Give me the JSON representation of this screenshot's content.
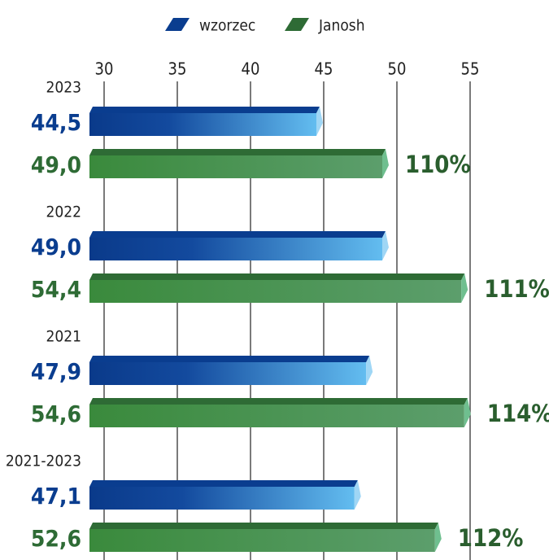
{
  "chart_data": {
    "type": "bar",
    "orientation": "horizontal",
    "categories": [
      "2023",
      "2022",
      "2021",
      "2021-2023"
    ],
    "series": [
      {
        "name": "wzorzec",
        "color": "#0a3d8f",
        "values": [
          44.5,
          49.0,
          47.9,
          47.1
        ],
        "value_labels": [
          "44,5",
          "49,0",
          "47,9",
          "47,1"
        ]
      },
      {
        "name": "Janosh",
        "color": "#2e6b35",
        "values": [
          49.0,
          54.4,
          54.6,
          52.6
        ],
        "value_labels": [
          "49,0",
          "54,4",
          "54,6",
          "52,6"
        ]
      }
    ],
    "annotations": [
      "110%",
      "111%",
      "114%",
      "112%"
    ],
    "xlim": [
      29,
      60
    ],
    "xticks": [
      30,
      35,
      40,
      45,
      50,
      55
    ],
    "grid": true,
    "legend": "top"
  }
}
